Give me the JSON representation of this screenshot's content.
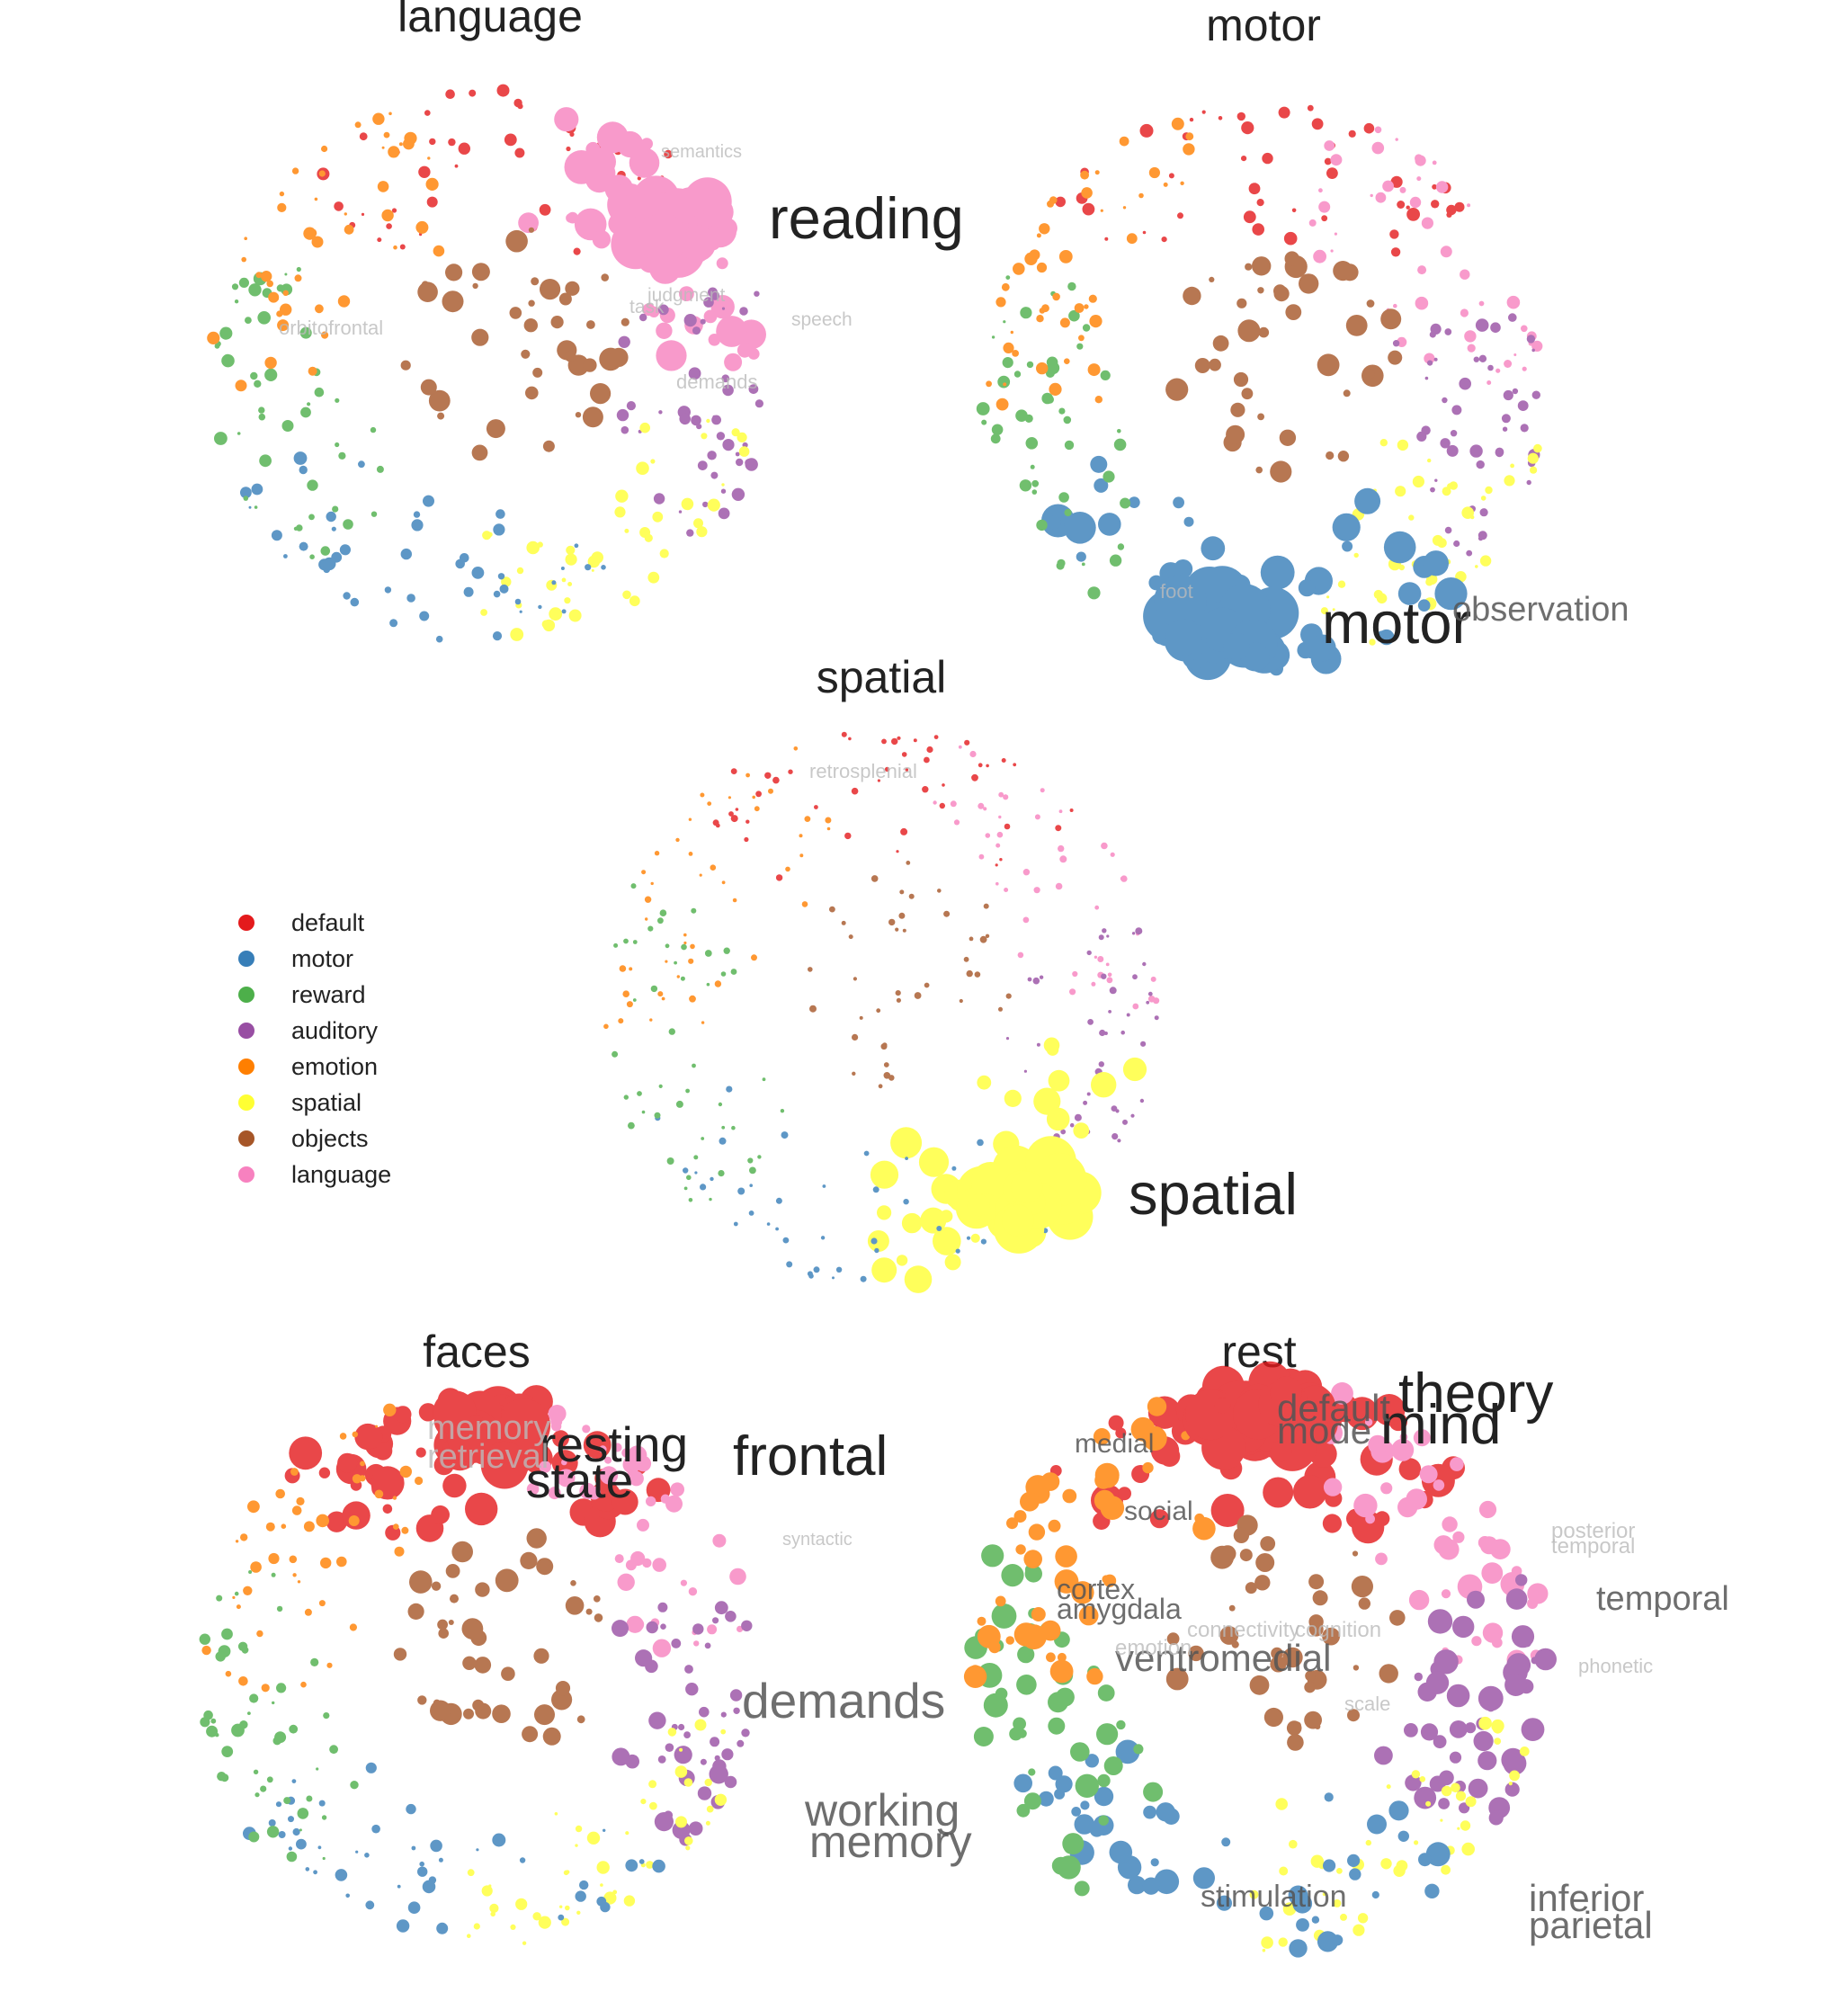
{
  "colors": {
    "default": "#e41a1c",
    "motor": "#377eb8",
    "reward": "#4daf4a",
    "auditory": "#984ea3",
    "emotion": "#ff7f00",
    "spatial": "#ffff33",
    "objects": "#a65628",
    "language": "#f781bf"
  },
  "legend": {
    "items": [
      {
        "key": "default",
        "label": "default"
      },
      {
        "key": "motor",
        "label": "motor"
      },
      {
        "key": "reward",
        "label": "reward"
      },
      {
        "key": "auditory",
        "label": "auditory"
      },
      {
        "key": "emotion",
        "label": "emotion"
      },
      {
        "key": "spatial",
        "label": "spatial"
      },
      {
        "key": "objects",
        "label": "objects"
      },
      {
        "key": "language",
        "label": "language"
      }
    ]
  },
  "panels": [
    {
      "id": "language",
      "title": "language",
      "highlight": "language",
      "labels": [
        {
          "text": "reading",
          "tier": "primary"
        },
        {
          "text": "semantics",
          "tier": "faint"
        },
        {
          "text": "judgment",
          "tier": "faint"
        },
        {
          "text": "task",
          "tier": "faint"
        },
        {
          "text": "speech",
          "tier": "faint"
        },
        {
          "text": "orbitofrontal",
          "tier": "faint"
        },
        {
          "text": "demands",
          "tier": "faint"
        }
      ]
    },
    {
      "id": "motor",
      "title": "motor",
      "highlight": "motor",
      "labels": [
        {
          "text": "motor",
          "tier": "primary"
        },
        {
          "text": "observation",
          "tier": "secondary"
        },
        {
          "text": "foot",
          "tier": "faint"
        }
      ]
    },
    {
      "id": "spatial",
      "title": "spatial",
      "highlight": "spatial",
      "labels": [
        {
          "text": "spatial",
          "tier": "primary"
        },
        {
          "text": "retrosplenial",
          "tier": "faint"
        }
      ]
    },
    {
      "id": "faces",
      "title": "faces",
      "highlight": "default",
      "labels": [
        {
          "text": "frontal",
          "tier": "primary"
        },
        {
          "text": "resting",
          "tier": "primary"
        },
        {
          "text": "state",
          "tier": "primary"
        },
        {
          "text": "demands",
          "tier": "secondary"
        },
        {
          "text": "working",
          "tier": "secondary"
        },
        {
          "text": "memory",
          "tier": "secondary"
        },
        {
          "text": "memory",
          "tier": "faint"
        },
        {
          "text": "retrieval",
          "tier": "faint"
        },
        {
          "text": "syntactic",
          "tier": "faint"
        }
      ]
    },
    {
      "id": "rest",
      "title": "rest",
      "highlight": "default",
      "labels": [
        {
          "text": "theory",
          "tier": "primary"
        },
        {
          "text": "mind",
          "tier": "primary"
        },
        {
          "text": "default",
          "tier": "secondary"
        },
        {
          "text": "mode",
          "tier": "secondary"
        },
        {
          "text": "temporal",
          "tier": "secondary"
        },
        {
          "text": "ventromedial",
          "tier": "secondary"
        },
        {
          "text": "inferior",
          "tier": "secondary"
        },
        {
          "text": "parietal",
          "tier": "secondary"
        },
        {
          "text": "cortex",
          "tier": "secondary"
        },
        {
          "text": "amygdala",
          "tier": "secondary"
        },
        {
          "text": "stimulation",
          "tier": "secondary"
        },
        {
          "text": "social",
          "tier": "secondary"
        },
        {
          "text": "medial",
          "tier": "secondary"
        },
        {
          "text": "posterior",
          "tier": "faint"
        },
        {
          "text": "temporal",
          "tier": "faint"
        },
        {
          "text": "connectivity",
          "tier": "faint"
        },
        {
          "text": "cognition",
          "tier": "faint"
        },
        {
          "text": "emotion",
          "tier": "faint"
        },
        {
          "text": "phonetic",
          "tier": "faint"
        },
        {
          "text": "scale",
          "tier": "faint"
        }
      ]
    }
  ]
}
